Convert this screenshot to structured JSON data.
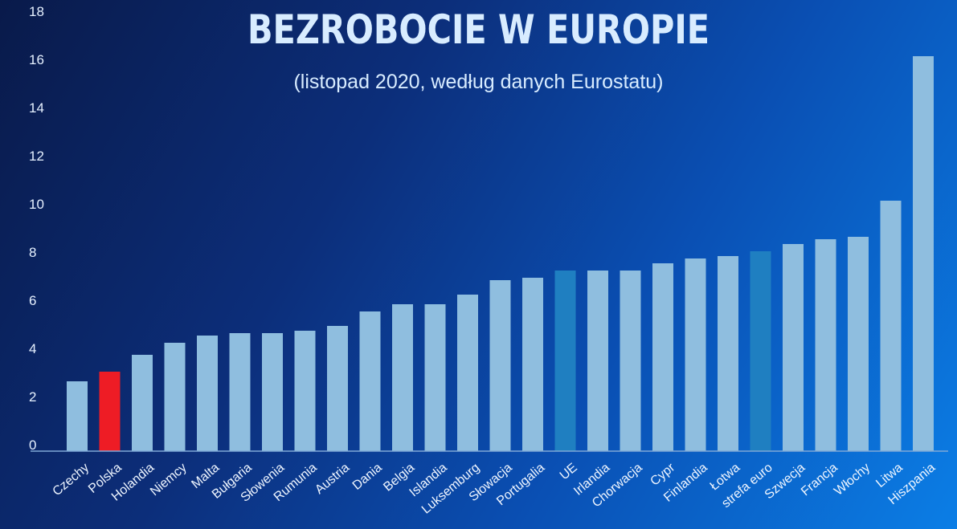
{
  "chart_data": {
    "type": "bar",
    "title": "BEZROBOCIE W EUROPIE",
    "subtitle": "(listopad 2020, według danych Eurostatu)",
    "xlabel": "",
    "ylabel": "",
    "ylim": [
      0,
      18
    ],
    "yticks": [
      0,
      2,
      4,
      6,
      8,
      10,
      12,
      14,
      16,
      18
    ],
    "grid": false,
    "categories": [
      "Czechy",
      "Polska",
      "Holandia",
      "Niemcy",
      "Malta",
      "Bułgaria",
      "Słowenia",
      "Rumunia",
      "Austria",
      "Dania",
      "Belgia",
      "Islandia",
      "Luksemburg",
      "Słowacja",
      "Portugalia",
      "UE",
      "Irlandia",
      "Chorwacja",
      "Cypr",
      "Finlandia",
      "Łotwa",
      "strefa euro",
      "Szwecja",
      "Francja",
      "Włochy",
      "Litwa",
      "Hiszpania"
    ],
    "values": [
      2.9,
      3.3,
      4.0,
      4.5,
      4.8,
      4.9,
      4.9,
      5.0,
      5.2,
      5.8,
      6.1,
      6.1,
      6.5,
      7.1,
      7.2,
      7.5,
      7.5,
      7.5,
      7.8,
      8.0,
      8.1,
      8.3,
      8.6,
      8.8,
      8.9,
      10.4,
      16.4
    ],
    "colors": {
      "default": "#8fbedf",
      "Polska": "#ee1c25",
      "UE": "#1f7fc1",
      "strefa euro": "#1f7fc1"
    }
  }
}
